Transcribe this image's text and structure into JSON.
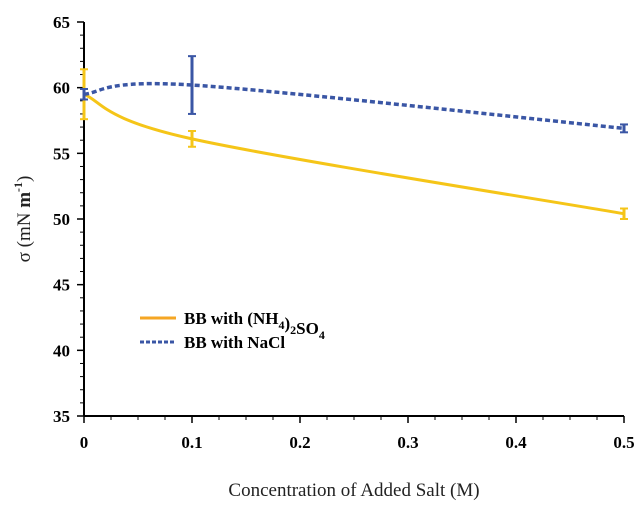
{
  "chart_data": {
    "type": "line",
    "xlabel": "Concentration of Added Salt (M)",
    "ylabel": {
      "main": "σ (mN ",
      "unit": "m",
      "exp": "-1",
      "close": ")"
    },
    "xlim": [
      0,
      0.5
    ],
    "ylim": [
      35,
      65
    ],
    "xticks": [
      "0",
      "0.1",
      "0.2",
      "0.3",
      "0.4",
      "0.5"
    ],
    "xtick_values": [
      0,
      0.1,
      0.2,
      0.3,
      0.4,
      0.5
    ],
    "yticks": [
      "35",
      "40",
      "45",
      "50",
      "55",
      "60",
      "65"
    ],
    "ytick_values": [
      35,
      40,
      45,
      50,
      55,
      60,
      65
    ],
    "grid": false,
    "legend_position": "lower-left",
    "series": [
      {
        "name": "BB with (NH4)2SO4",
        "legend": {
          "prefix": "BB with (NH",
          "sub1": "4",
          "mid": ")",
          "sub2": "2",
          "suffix": "SO",
          "sub3": "4"
        },
        "color": "#f5c518",
        "style": "solid",
        "x": [
          0,
          0.1,
          0.5
        ],
        "y": [
          59.5,
          56.1,
          50.4
        ],
        "err": [
          1.9,
          0.6,
          0.4
        ]
      },
      {
        "name": "BB with NaCl",
        "legend": {
          "prefix": "BB with NaCl"
        },
        "color": "#3a56a5",
        "style": "dashed",
        "x": [
          0,
          0.1,
          0.5
        ],
        "y": [
          59.5,
          60.2,
          56.9
        ],
        "err": [
          0.4,
          2.2,
          0.3
        ]
      }
    ]
  }
}
